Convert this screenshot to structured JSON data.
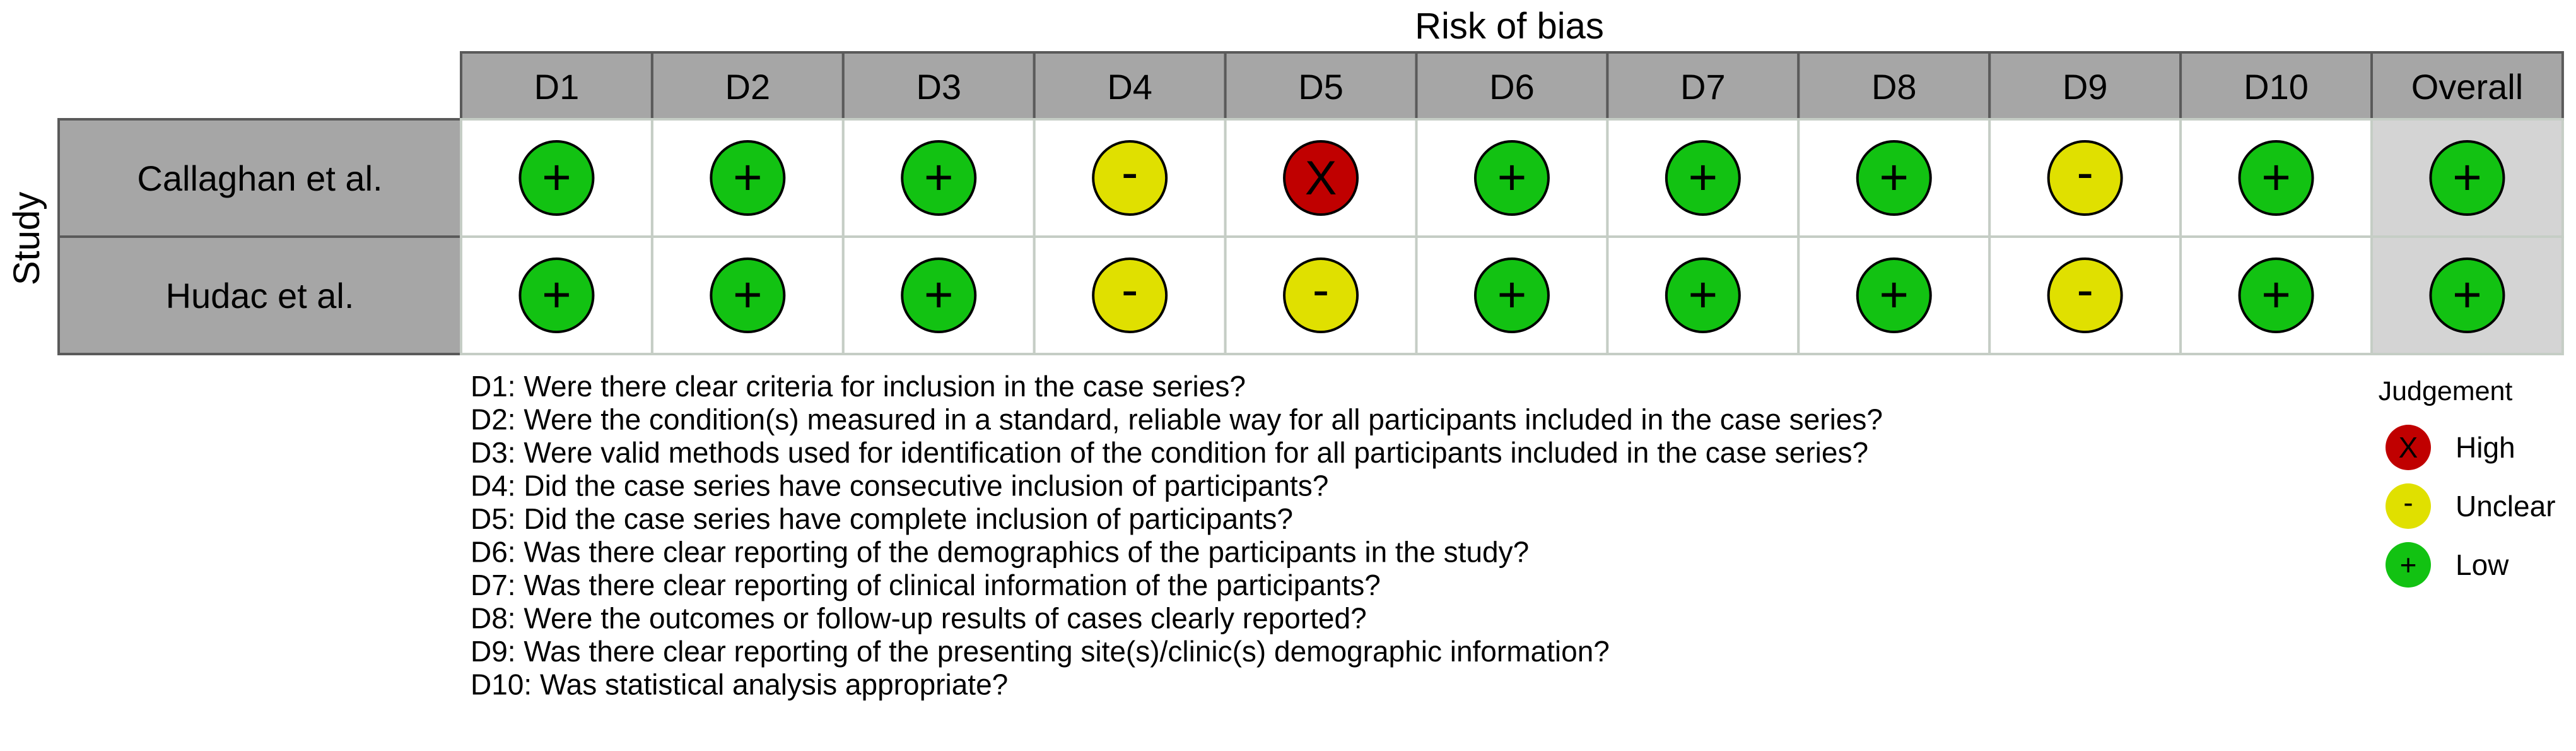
{
  "chart_data": {
    "type": "table",
    "title": "Risk of bias",
    "row_axis_label": "Study",
    "columns": [
      "D1",
      "D2",
      "D3",
      "D4",
      "D5",
      "D6",
      "D7",
      "D8",
      "D9",
      "D10",
      "Overall"
    ],
    "studies": [
      {
        "name": "Callaghan et al.",
        "judgements": [
          "Low",
          "Low",
          "Low",
          "Unclear",
          "High",
          "Low",
          "Low",
          "Low",
          "Unclear",
          "Low",
          "Low"
        ]
      },
      {
        "name": "Hudac et al.",
        "judgements": [
          "Low",
          "Low",
          "Low",
          "Unclear",
          "Unclear",
          "Low",
          "Low",
          "Low",
          "Unclear",
          "Low",
          "Low"
        ]
      }
    ],
    "domain_descriptions": [
      "D1: Were there clear criteria for inclusion in the case series?",
      "D2: Were the condition(s) measured in a standard, reliable way for all participants included in the case series?",
      "D3: Were valid methods used for identification of the condition for all participants included in the case series?",
      "D4: Did the case series have consecutive inclusion of participants?",
      "D5: Did the case series have complete inclusion of participants?",
      "D6: Was there clear reporting of the demographics of the participants in the study?",
      "D7: Was there clear reporting of clinical information of the participants?",
      "D8: Were the outcomes or follow-up results of cases clearly reported?",
      "D9: Was there clear reporting of the presenting site(s)/clinic(s) demographic information?",
      "D10: Was statistical analysis appropriate?"
    ],
    "legend": {
      "title": "Judgement",
      "placement": "bottom-right",
      "items": [
        {
          "label": "High",
          "symbol": "X",
          "color": "#c00000"
        },
        {
          "label": "Unclear",
          "symbol": "-",
          "color": "#e0e000"
        },
        {
          "label": "Low",
          "symbol": "+",
          "color": "#12c212"
        }
      ]
    },
    "colors": {
      "header_fill": "#a6a6a6",
      "overall_fill": "#d4d4d4",
      "cell_fill": "#ffffff",
      "grid_line": "#c5cdc5"
    }
  }
}
